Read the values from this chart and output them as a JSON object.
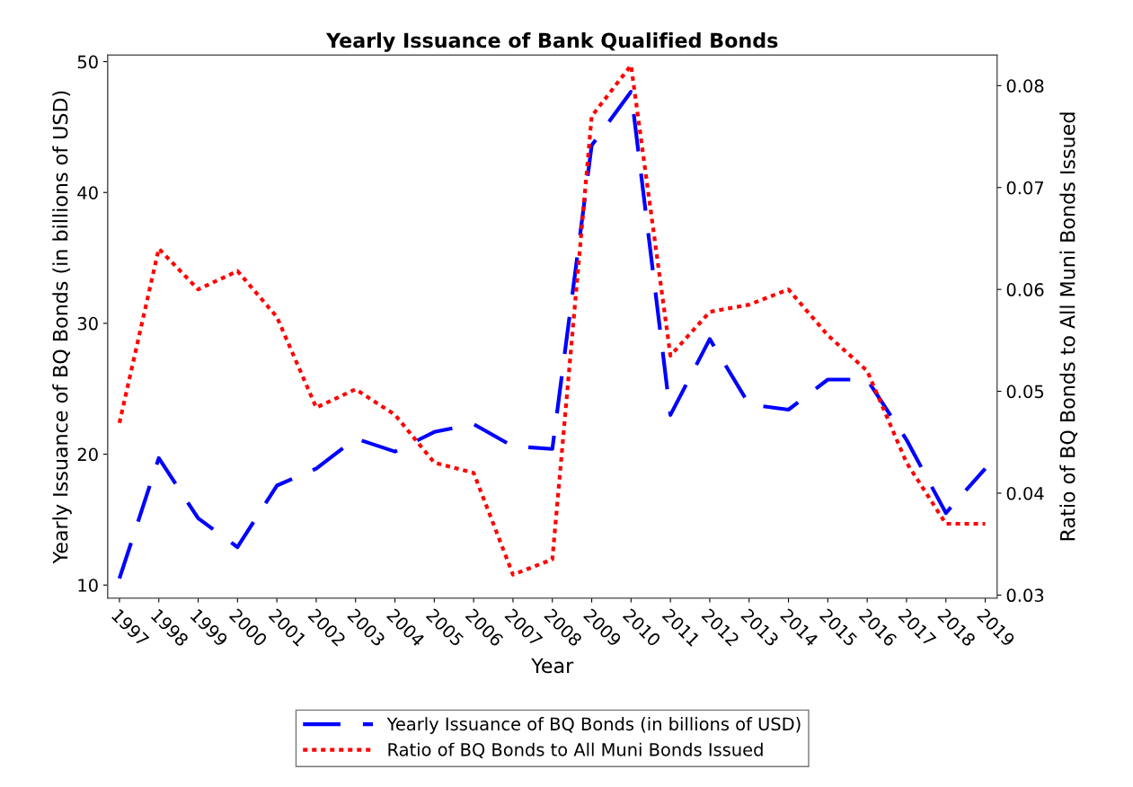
{
  "chart_data": {
    "type": "line",
    "title": "Yearly Issuance of Bank Qualified Bonds",
    "xlabel": "Year",
    "ylabel": "Yearly Issuance of BQ Bonds (in billions of USD)",
    "y2label": "Ratio of BQ Bonds to All Muni Bonds Issued",
    "categories": [
      "1997",
      "1998",
      "1999",
      "2000",
      "2001",
      "2002",
      "2003",
      "2004",
      "2005",
      "2006",
      "2007",
      "2008",
      "2009",
      "2010",
      "2011",
      "2012",
      "2013",
      "2014",
      "2015",
      "2016",
      "2017",
      "2018",
      "2019"
    ],
    "series": [
      {
        "name": "Yearly Issuance of BQ Bonds (in billions of USD)",
        "color": "#0000ff",
        "line_style": "dashed",
        "values": [
          10.5,
          19.7,
          15.1,
          12.9,
          17.6,
          18.9,
          21.2,
          20.2,
          21.7,
          22.3,
          20.6,
          20.4,
          43.6,
          47.7,
          23.0,
          28.8,
          23.8,
          23.4,
          25.7,
          25.7,
          21.1,
          15.5,
          18.9
        ]
      },
      {
        "name": "Ratio of BQ Bonds to All Muni Bonds Issued",
        "color": "#ff0000",
        "line_style": "dotted",
        "axis": "y2",
        "values": [
          0.0469,
          0.064,
          0.06,
          0.0618,
          0.0573,
          0.0484,
          0.0502,
          0.0477,
          0.043,
          0.042,
          0.032,
          0.0335,
          0.077,
          0.082,
          0.0535,
          0.0578,
          0.0585,
          0.06,
          0.0555,
          0.052,
          0.043,
          0.037,
          0.037
        ]
      }
    ],
    "ylim": [
      9,
      50.5
    ],
    "yticks": [
      10,
      20,
      30,
      40,
      50
    ],
    "y2lim": [
      0.0297,
      0.083
    ],
    "y2ticks": [
      0.03,
      0.04,
      0.05,
      0.06,
      0.07,
      0.08
    ],
    "grid": false,
    "legend": "bottom"
  }
}
